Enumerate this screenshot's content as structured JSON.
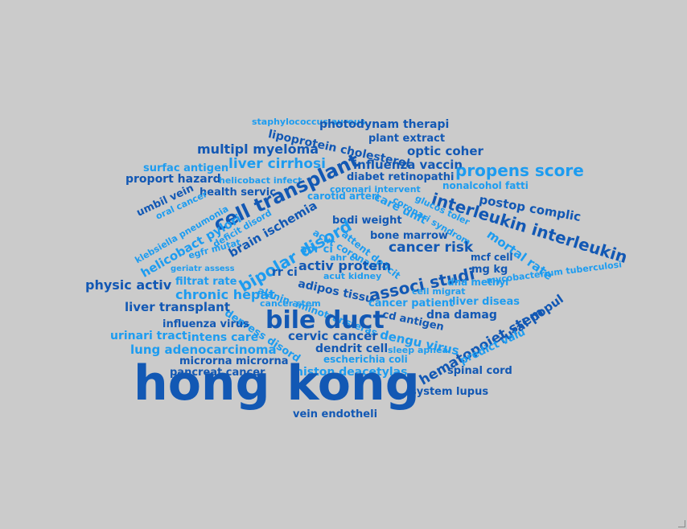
{
  "palette": {
    "background": "#cbcbcb",
    "dark": "#1258b4",
    "light": "#1d9cf0"
  },
  "words": [
    "staphylococcus aureus",
    "photodynam therapi",
    "plant extract",
    "lipoprotein cholesterol",
    "optic coher",
    "multipl myeloma",
    "liver cirrhosi",
    "influenza vaccin",
    "propens score",
    "surfac antigen",
    "diabet retinopathi",
    "proport hazard",
    "helicobact infect",
    "nonalcohol fatti",
    "cell transplant",
    "health servic",
    "coronari intervent",
    "umbil vein",
    "carotid arteri",
    "oral cancer",
    "interleukin interleukin",
    "care unit",
    "glucos toler",
    "postop complic",
    "klebsiella pneumonia",
    "brain ischemia",
    "coronari syndrom",
    "helicobact pylori",
    "bodi weight",
    "deficit disord",
    "acut coronari",
    "bone marrow",
    "mortal rate",
    "egfr mutat",
    "bipolar disord",
    "attent deficit",
    "cancer risk",
    "aor ci",
    "ahr ci",
    "mcf cell",
    "geriatr assess",
    "activ protein",
    "mg kg",
    "rr ci",
    "acut kidney",
    "associ studi",
    "physic activ",
    "filtrat rate",
    "dna methyl",
    "alanin aminotransferas",
    "adipos tissu",
    "mycobacterium tuberculosi",
    "chronic hepat",
    "cell migrat",
    "cancer stem",
    "cancer patient",
    "liver diseas",
    "liver transplant",
    "cd antigen",
    "hematopoiet stem",
    "rural popul",
    "depress disord",
    "dna damag",
    "bile duct",
    "influenza virus",
    "urinari tract",
    "intens care",
    "cervic cancer",
    "dengu virus",
    "predict valu",
    "lung adenocarcinoma",
    "dendrit cell",
    "sleep apnea",
    "microrna microrna",
    "escherichia coli",
    "pancreat cancer",
    "histon deacetylas",
    "spinal cord",
    "hong kong",
    "system lupus",
    "vein endotheli"
  ]
}
